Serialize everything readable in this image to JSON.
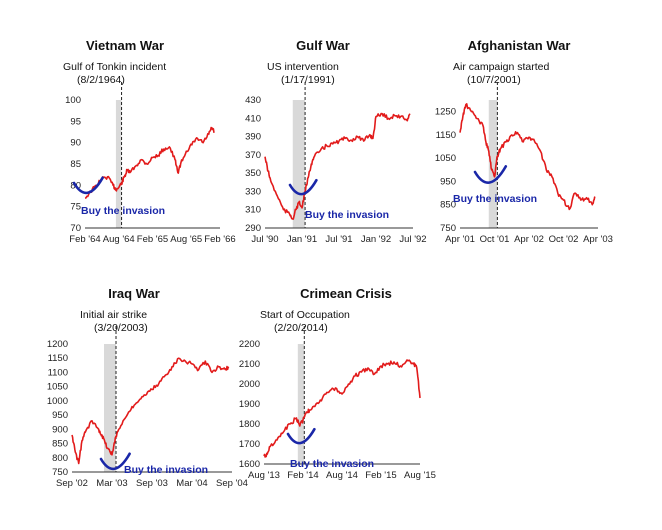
{
  "annotation": {
    "label": "Buy the invasion",
    "color": "#1a27a8"
  },
  "colors": {
    "line": "#e21b1b",
    "shade": "#d9d9d9",
    "axis": "#333333"
  },
  "chart_data": [
    {
      "type": "line",
      "title": "Vietnam War",
      "event_label": "Gulf of Tonkin incident",
      "event_date": "(8/2/1964)",
      "yticks": [
        "100",
        "95",
        "90",
        "85",
        "80",
        "75",
        "70"
      ],
      "ylim": [
        70,
        100
      ],
      "xticks": [
        "Feb '64",
        "Aug '64",
        "Feb '65",
        "Aug '65",
        "Feb '66"
      ],
      "xlim": [
        0,
        24
      ],
      "shade": [
        5.5,
        6.5
      ],
      "event_x": 6.5,
      "x": [
        0,
        1,
        2,
        3,
        4,
        5,
        5.5,
        6,
        6.5,
        7,
        7.5,
        8,
        9,
        10,
        11,
        12,
        13,
        14,
        15,
        16,
        16.5,
        17,
        18,
        19,
        20,
        21,
        22,
        22.5,
        23
      ],
      "values": [
        77,
        78.5,
        80,
        81.5,
        82,
        80,
        79,
        79.5,
        80.5,
        82,
        83.5,
        83,
        84.5,
        86,
        85,
        86.5,
        87,
        88.5,
        89,
        86,
        83,
        85,
        88,
        89.5,
        91,
        90,
        92,
        93.5,
        92.5
      ]
    },
    {
      "type": "line",
      "title": "Gulf War",
      "event_label": "US intervention",
      "event_date": "(1/17/1991)",
      "yticks": [
        "430",
        "410",
        "390",
        "370",
        "350",
        "330",
        "310",
        "290"
      ],
      "ylim": [
        290,
        430
      ],
      "xticks": [
        "Jul '90",
        "Jan '91",
        "Jul '91",
        "Jan '92",
        "Jul '92"
      ],
      "xlim": [
        0,
        24
      ],
      "shade": [
        4.5,
        6.5
      ],
      "event_x": 6.5,
      "x": [
        0,
        0.5,
        1,
        2,
        3,
        4,
        4.5,
        5,
        5.5,
        6,
        6.5,
        7,
        7.5,
        8,
        9,
        10,
        11,
        12,
        13,
        14,
        15,
        16,
        17,
        17.5,
        18,
        19,
        20,
        21,
        22,
        23,
        23.5
      ],
      "values": [
        368,
        352,
        340,
        325,
        310,
        305,
        300,
        310,
        318,
        312,
        330,
        345,
        360,
        368,
        375,
        380,
        382,
        385,
        388,
        386,
        390,
        385,
        392,
        388,
        412,
        415,
        410,
        413,
        412,
        408,
        415
      ]
    },
    {
      "type": "line",
      "title": "Afghanistan War",
      "event_label": "Air campaign started",
      "event_date": "(10/7/2001)",
      "yticks": [
        "1250",
        "1150",
        "1050",
        "950",
        "850",
        "750"
      ],
      "ylim": [
        750,
        1300
      ],
      "xticks": [
        "Apr '01",
        "Oct '01",
        "Apr '02",
        "Oct '02",
        "Apr '03"
      ],
      "xlim": [
        0,
        24
      ],
      "shade": [
        5,
        6.5
      ],
      "event_x": 6.5,
      "x": [
        0,
        0.5,
        1,
        2,
        3,
        4,
        4.5,
        5,
        5.5,
        6,
        6.5,
        7,
        8,
        9,
        10,
        11,
        12,
        13,
        14,
        15,
        16,
        17,
        18,
        19,
        20,
        21,
        22,
        23,
        23.5
      ],
      "values": [
        1160,
        1230,
        1280,
        1250,
        1220,
        1190,
        1120,
        1080,
        1000,
        970,
        1060,
        1090,
        1120,
        1150,
        1160,
        1120,
        1140,
        1120,
        1080,
        1000,
        970,
        900,
        870,
        830,
        900,
        870,
        880,
        850,
        880
      ]
    },
    {
      "type": "line",
      "title": "Iraq War",
      "event_label": "Initial air strike",
      "event_date": "(3/20/2003)",
      "yticks": [
        "1200",
        "1150",
        "1100",
        "1050",
        "1000",
        "950",
        "900",
        "850",
        "800",
        "750"
      ],
      "ylim": [
        750,
        1200
      ],
      "xticks": [
        "Sep '02",
        "Mar '03",
        "Sep '03",
        "Mar '04",
        "Sep '04"
      ],
      "xlim": [
        0,
        24
      ],
      "shade": [
        4.8,
        6.6
      ],
      "event_x": 6.6,
      "x": [
        0,
        0.5,
        1,
        1.5,
        2,
        3,
        4,
        4.5,
        5,
        5.5,
        6,
        6.5,
        7,
        8,
        9,
        10,
        11,
        12,
        13,
        14,
        15,
        16,
        17,
        18,
        19,
        20,
        21,
        22,
        23,
        23.5
      ],
      "values": [
        880,
        820,
        780,
        860,
        890,
        930,
        900,
        880,
        850,
        830,
        810,
        870,
        900,
        940,
        980,
        1000,
        1020,
        1040,
        1060,
        1090,
        1120,
        1150,
        1140,
        1130,
        1110,
        1140,
        1100,
        1120,
        1110,
        1120
      ]
    },
    {
      "type": "line",
      "title": "Crimean Crisis",
      "event_label": "Start of Occupation",
      "event_date": "(2/20/2014)",
      "yticks": [
        "2200",
        "2100",
        "2000",
        "1900",
        "1800",
        "1700",
        "1600"
      ],
      "ylim": [
        1600,
        2200
      ],
      "xticks": [
        "Aug '13",
        "Feb '14",
        "Aug '14",
        "Feb '15",
        "Aug '15"
      ],
      "xlim": [
        0,
        24
      ],
      "shade": [
        5.2,
        6.2
      ],
      "event_x": 6.2,
      "x": [
        0,
        0.5,
        1,
        2,
        3,
        4,
        5,
        5.5,
        6,
        6.5,
        7,
        8,
        9,
        10,
        11,
        12,
        13,
        14,
        15,
        16,
        17,
        18,
        19,
        20,
        21,
        22,
        23,
        23.5,
        24
      ],
      "values": [
        1640,
        1650,
        1690,
        1720,
        1760,
        1800,
        1830,
        1790,
        1820,
        1860,
        1870,
        1900,
        1930,
        1960,
        1980,
        1950,
        2000,
        2040,
        2060,
        2080,
        2050,
        2090,
        2100,
        2110,
        2090,
        2120,
        2100,
        2080,
        1930
      ]
    }
  ]
}
